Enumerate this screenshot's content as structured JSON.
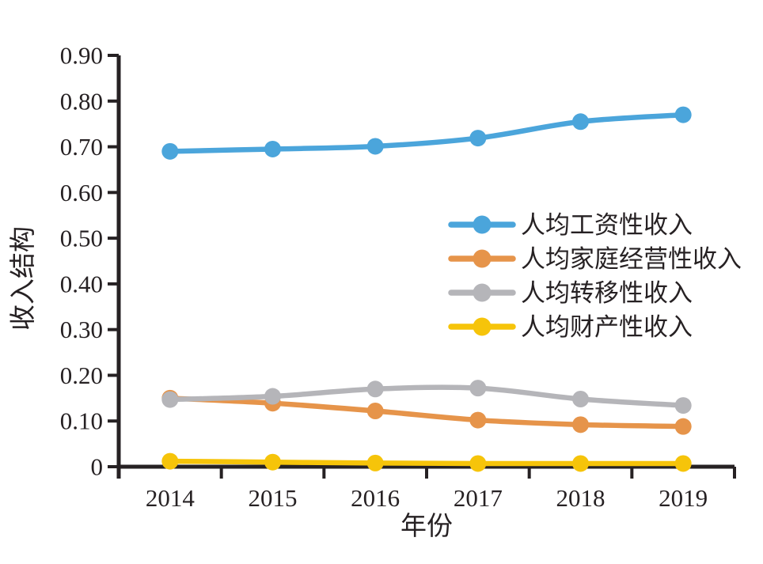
{
  "figure": {
    "background": "#ffffff",
    "axis_color": "#262123",
    "text_color": "#262123"
  },
  "chart_data": {
    "type": "line",
    "title": "",
    "xlabel": "年份",
    "ylabel": "收入结构",
    "categories": [
      "2014",
      "2015",
      "2016",
      "2017",
      "2018",
      "2019"
    ],
    "ylim": [
      0,
      0.9
    ],
    "y_ticks": [
      0,
      0.1,
      0.2,
      0.3,
      0.4,
      0.5,
      0.6,
      0.7,
      0.8,
      0.9
    ],
    "y_tick_labels": [
      "0",
      "0.10",
      "0.20",
      "0.30",
      "0.40",
      "0.50",
      "0.60",
      "0.70",
      "0.80",
      "0.90"
    ],
    "grid": false,
    "smooth": true,
    "legend_position": "center-right",
    "marker": "circle",
    "series": [
      {
        "key": "wage",
        "name": "人均工资性收入",
        "color": "#4BA5DB",
        "values": [
          0.69,
          0.695,
          0.701,
          0.719,
          0.755,
          0.77
        ]
      },
      {
        "key": "family-business",
        "name": "人均家庭经营性收入",
        "color": "#E6944A",
        "values": [
          0.15,
          0.139,
          0.122,
          0.102,
          0.092,
          0.088
        ]
      },
      {
        "key": "transfer",
        "name": "人均转移性收入",
        "color": "#B5B5B9",
        "values": [
          0.147,
          0.154,
          0.17,
          0.172,
          0.148,
          0.134
        ]
      },
      {
        "key": "property",
        "name": "人均财产性收入",
        "color": "#F6C40A",
        "values": [
          0.012,
          0.01,
          0.008,
          0.007,
          0.007,
          0.007
        ]
      }
    ]
  }
}
